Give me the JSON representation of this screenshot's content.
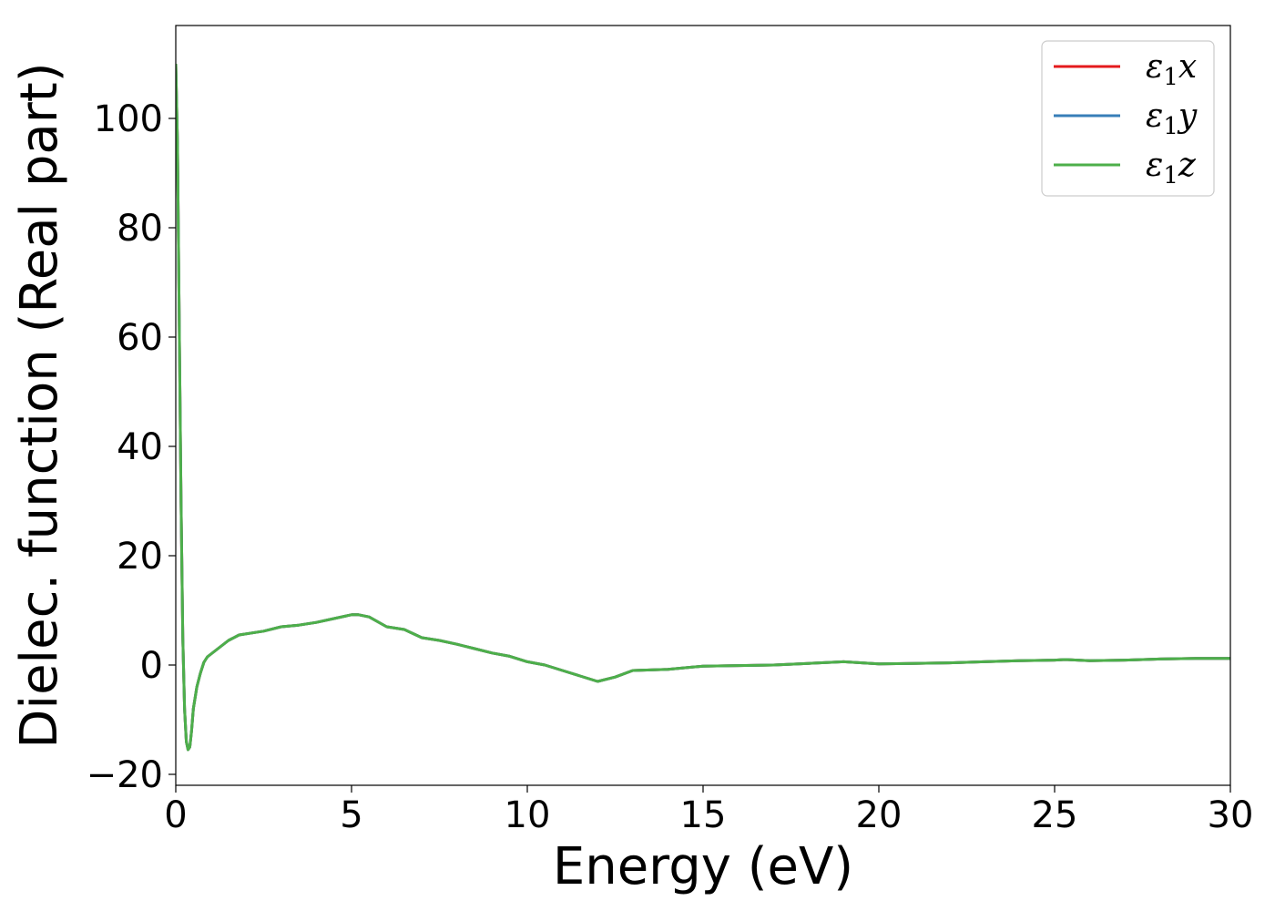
{
  "chart_data": {
    "type": "line",
    "title": "",
    "xlabel": "Energy (eV)",
    "ylabel": "Dielec. function (Real part)",
    "xlim": [
      0,
      30
    ],
    "ylim": [
      -22,
      117
    ],
    "xticks": [
      0,
      5,
      10,
      15,
      20,
      25,
      30
    ],
    "xtick_labels": [
      "0",
      "5",
      "10",
      "15",
      "20",
      "25",
      "30"
    ],
    "yticks": [
      -20,
      0,
      20,
      40,
      60,
      80,
      100
    ],
    "ytick_labels": [
      "−20",
      "0",
      "20",
      "40",
      "60",
      "80",
      "100"
    ],
    "grid": false,
    "legend_position": "top-right",
    "series": [
      {
        "name": "ε₁x",
        "name_main": "ε",
        "name_sub": "1",
        "name_tail": "x",
        "color": "#e41a1c",
        "x": [
          0.0,
          0.05,
          0.1,
          0.15,
          0.2,
          0.25,
          0.3,
          0.35,
          0.4,
          0.45,
          0.5,
          0.6,
          0.7,
          0.8,
          0.9,
          1.0,
          1.2,
          1.5,
          1.8,
          2.1,
          2.5,
          3.0,
          3.5,
          4.0,
          4.5,
          5.0,
          5.2,
          5.5,
          6.0,
          6.5,
          7.0,
          7.5,
          8.0,
          8.5,
          9.0,
          9.5,
          10.0,
          10.5,
          11.0,
          11.5,
          12.0,
          12.5,
          13.0,
          13.5,
          14.0,
          15.0,
          16.0,
          17.0,
          18.0,
          19.0,
          20.0,
          21.0,
          22.0,
          23.0,
          24.0,
          25.0,
          25.3,
          26.0,
          27.0,
          28.0,
          29.0,
          30.0
        ],
        "values": [
          110,
          95,
          62,
          30,
          5,
          -8,
          -14,
          -15.5,
          -15,
          -12,
          -8,
          -4,
          -1.5,
          0.5,
          1.5,
          2.0,
          3.0,
          4.5,
          5.5,
          5.8,
          6.2,
          7.0,
          7.3,
          7.8,
          8.5,
          9.2,
          9.2,
          8.8,
          7.0,
          6.5,
          5.0,
          4.5,
          3.8,
          3.0,
          2.2,
          1.6,
          0.6,
          0.0,
          -1.0,
          -2.0,
          -3.0,
          -2.2,
          -1.0,
          -0.9,
          -0.8,
          -0.2,
          -0.1,
          0.0,
          0.3,
          0.6,
          0.2,
          0.3,
          0.4,
          0.6,
          0.8,
          0.9,
          1.0,
          0.8,
          0.9,
          1.1,
          1.2,
          1.2
        ]
      },
      {
        "name": "ε₁y",
        "name_main": "ε",
        "name_sub": "1",
        "name_tail": "y",
        "color": "#377eb8",
        "x": [
          0.0,
          0.05,
          0.1,
          0.15,
          0.2,
          0.25,
          0.3,
          0.35,
          0.4,
          0.45,
          0.5,
          0.6,
          0.7,
          0.8,
          0.9,
          1.0,
          1.2,
          1.5,
          1.8,
          2.1,
          2.5,
          3.0,
          3.5,
          4.0,
          4.5,
          5.0,
          5.2,
          5.5,
          6.0,
          6.5,
          7.0,
          7.5,
          8.0,
          8.5,
          9.0,
          9.5,
          10.0,
          10.5,
          11.0,
          11.5,
          12.0,
          12.5,
          13.0,
          13.5,
          14.0,
          15.0,
          16.0,
          17.0,
          18.0,
          19.0,
          20.0,
          21.0,
          22.0,
          23.0,
          24.0,
          25.0,
          25.3,
          26.0,
          27.0,
          28.0,
          29.0,
          30.0
        ],
        "values": [
          110,
          95,
          62,
          30,
          5,
          -8,
          -14,
          -15.5,
          -15,
          -12,
          -8,
          -4,
          -1.5,
          0.5,
          1.5,
          2.0,
          3.0,
          4.5,
          5.5,
          5.8,
          6.2,
          7.0,
          7.3,
          7.8,
          8.5,
          9.2,
          9.2,
          8.8,
          7.0,
          6.5,
          5.0,
          4.5,
          3.8,
          3.0,
          2.2,
          1.6,
          0.6,
          0.0,
          -1.0,
          -2.0,
          -3.0,
          -2.2,
          -1.0,
          -0.9,
          -0.8,
          -0.2,
          -0.1,
          0.0,
          0.3,
          0.6,
          0.2,
          0.3,
          0.4,
          0.6,
          0.8,
          0.9,
          1.0,
          0.8,
          0.9,
          1.1,
          1.2,
          1.2
        ]
      },
      {
        "name": "ε₁z",
        "name_main": "ε",
        "name_sub": "1",
        "name_tail": "z",
        "color": "#4daf4a",
        "x": [
          0.0,
          0.05,
          0.1,
          0.15,
          0.2,
          0.25,
          0.3,
          0.35,
          0.4,
          0.45,
          0.5,
          0.6,
          0.7,
          0.8,
          0.9,
          1.0,
          1.2,
          1.5,
          1.8,
          2.1,
          2.5,
          3.0,
          3.5,
          4.0,
          4.5,
          5.0,
          5.2,
          5.5,
          6.0,
          6.5,
          7.0,
          7.5,
          8.0,
          8.5,
          9.0,
          9.5,
          10.0,
          10.5,
          11.0,
          11.5,
          12.0,
          12.5,
          13.0,
          13.5,
          14.0,
          15.0,
          16.0,
          17.0,
          18.0,
          19.0,
          20.0,
          21.0,
          22.0,
          23.0,
          24.0,
          25.0,
          25.3,
          26.0,
          27.0,
          28.0,
          29.0,
          30.0
        ],
        "values": [
          110,
          95,
          62,
          30,
          5,
          -8,
          -14,
          -15.5,
          -15,
          -12,
          -8,
          -4,
          -1.5,
          0.5,
          1.5,
          2.0,
          3.0,
          4.5,
          5.5,
          5.8,
          6.2,
          7.0,
          7.3,
          7.8,
          8.5,
          9.2,
          9.2,
          8.8,
          7.0,
          6.5,
          5.0,
          4.5,
          3.8,
          3.0,
          2.2,
          1.6,
          0.6,
          0.0,
          -1.0,
          -2.0,
          -3.0,
          -2.2,
          -1.0,
          -0.9,
          -0.8,
          -0.2,
          -0.1,
          0.0,
          0.3,
          0.6,
          0.2,
          0.3,
          0.4,
          0.6,
          0.8,
          0.9,
          1.0,
          0.8,
          0.9,
          1.1,
          1.2,
          1.2
        ]
      }
    ]
  }
}
